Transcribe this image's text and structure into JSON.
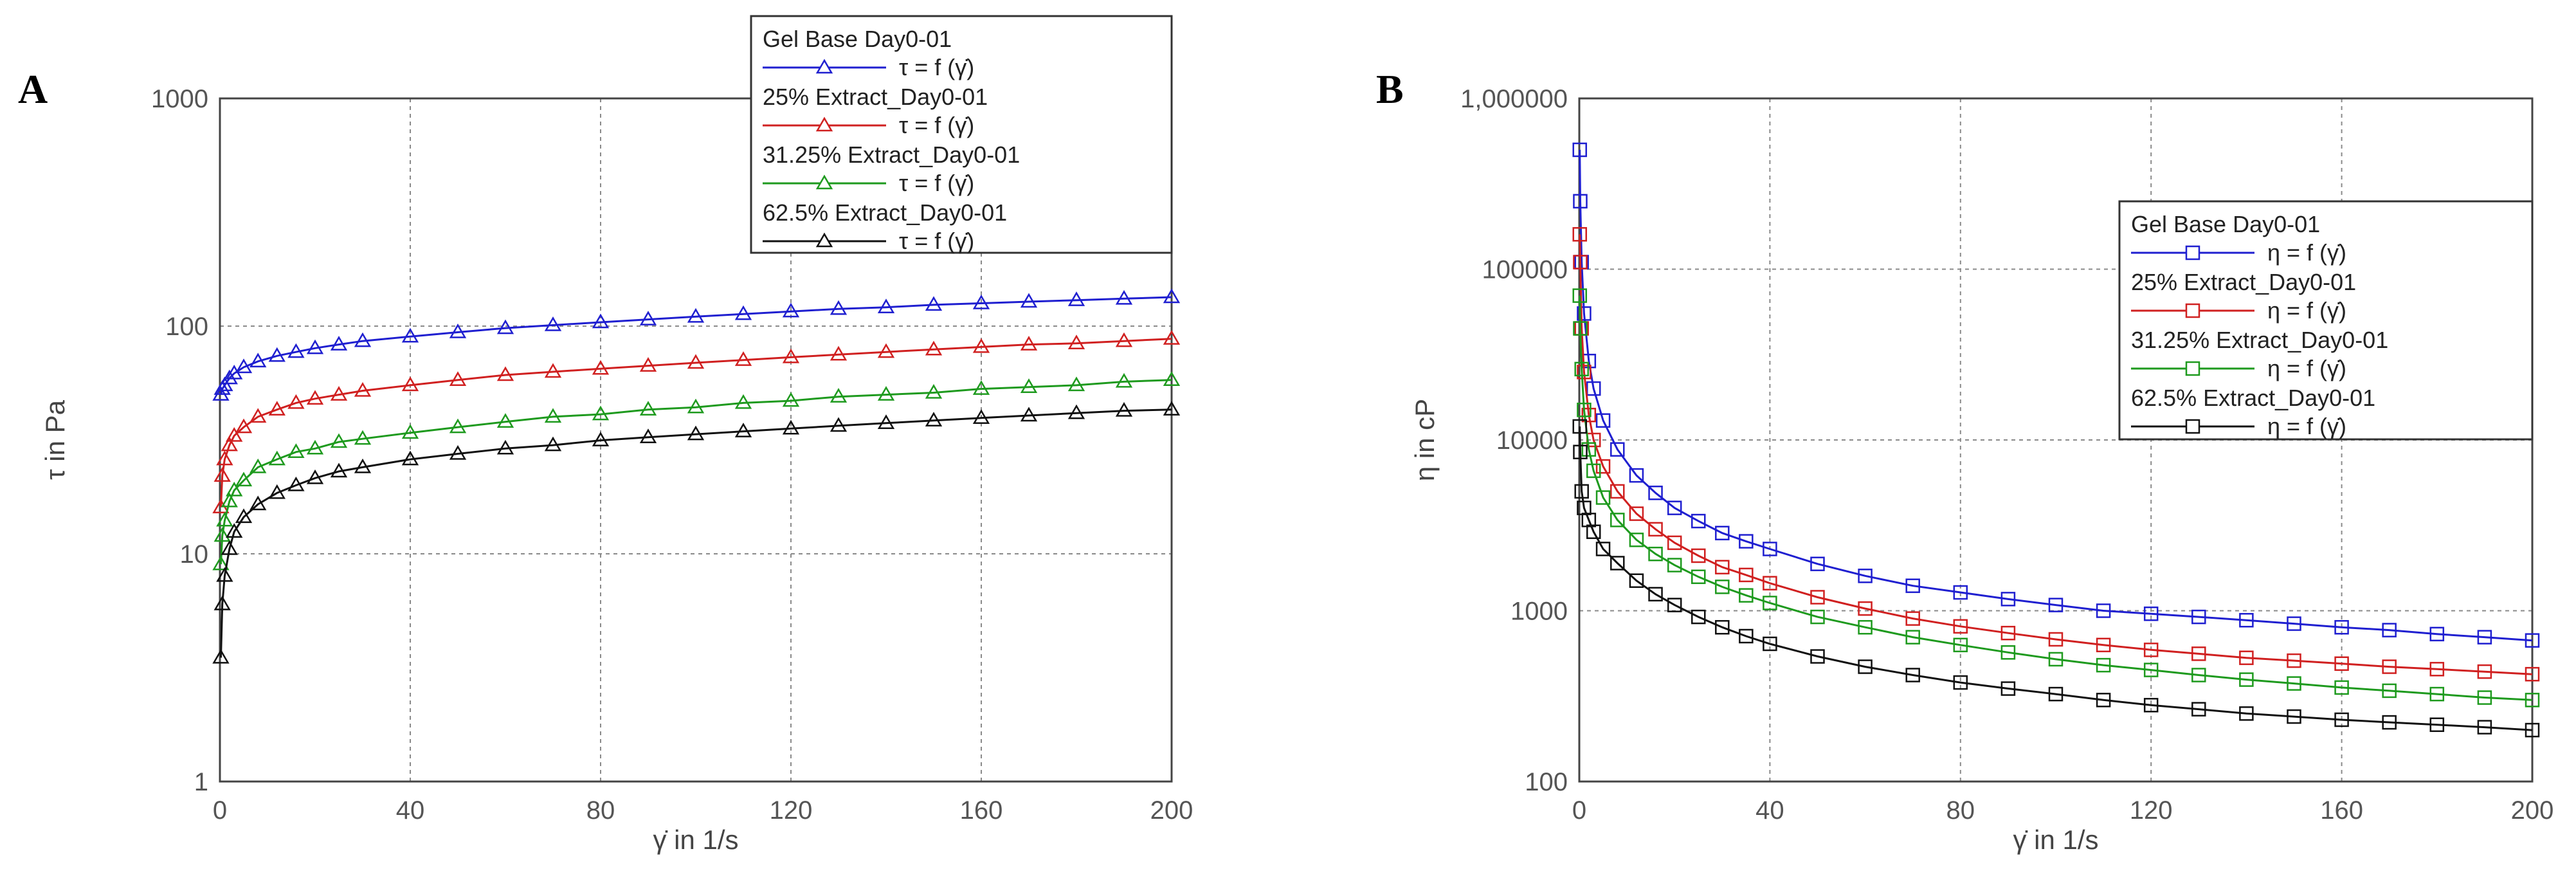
{
  "figure_labels": {
    "a": "A",
    "b": "B"
  },
  "chart_data": [
    {
      "type": "line",
      "panel": "A",
      "title": "",
      "xlabel": "γ̇ in 1/s",
      "ylabel": "τ in Pa",
      "yscale": "log",
      "xlim": [
        0,
        200
      ],
      "ylim": [
        1,
        1000
      ],
      "xticks": [
        "0",
        "40",
        "80",
        "120",
        "160",
        "200"
      ],
      "yticks": [
        "1",
        "10",
        "100",
        "1000"
      ],
      "marker": "triangle",
      "grid": true,
      "legend_position": "top-right",
      "series": [
        {
          "name": "Gel Base Day0-01",
          "legend_label": "τ = f (γ̇)",
          "color": "#1f1fd0",
          "x": [
            0.2,
            0.5,
            1,
            2,
            3,
            5,
            8,
            12,
            16,
            20,
            25,
            30,
            40,
            50,
            60,
            70,
            80,
            90,
            100,
            110,
            120,
            130,
            140,
            150,
            160,
            170,
            180,
            190,
            200
          ],
          "y": [
            50,
            53,
            55,
            59,
            62,
            66,
            70,
            74,
            77,
            80,
            83,
            86,
            90,
            94,
            98,
            101,
            104,
            107,
            110,
            113,
            116,
            119,
            121,
            124,
            126,
            128,
            130,
            132,
            134
          ]
        },
        {
          "name": "25% Extract_Day0-01",
          "legend_label": "τ = f (γ̇)",
          "color": "#d02020",
          "x": [
            0.2,
            0.5,
            1,
            2,
            3,
            5,
            8,
            12,
            16,
            20,
            25,
            30,
            40,
            50,
            60,
            70,
            80,
            90,
            100,
            110,
            120,
            130,
            140,
            150,
            160,
            170,
            180,
            190,
            200
          ],
          "y": [
            16,
            22,
            26,
            30,
            33,
            36,
            40,
            43,
            46,
            48,
            50,
            52,
            55,
            58,
            61,
            63,
            65,
            67,
            69,
            71,
            73,
            75,
            77,
            79,
            81,
            83,
            84,
            86,
            88
          ]
        },
        {
          "name": "31.25% Extract_Day0-01",
          "legend_label": "τ = f (γ̇)",
          "color": "#1e9a1e",
          "x": [
            0.2,
            0.5,
            1,
            2,
            3,
            5,
            8,
            12,
            16,
            20,
            25,
            30,
            40,
            50,
            60,
            70,
            80,
            90,
            100,
            110,
            120,
            130,
            140,
            150,
            160,
            170,
            180,
            190,
            200
          ],
          "y": [
            9,
            12,
            14,
            17,
            19,
            21,
            24,
            26,
            28,
            29,
            31,
            32,
            34,
            36,
            38,
            40,
            41,
            43,
            44,
            46,
            47,
            49,
            50,
            51,
            53,
            54,
            55,
            57,
            58
          ]
        },
        {
          "name": "62.5% Extract_Day0-01",
          "legend_label": "τ = f (γ̇)",
          "color": "#111111",
          "x": [
            0.2,
            0.5,
            1,
            2,
            3,
            5,
            8,
            12,
            16,
            20,
            25,
            30,
            40,
            50,
            60,
            70,
            80,
            90,
            100,
            110,
            120,
            130,
            140,
            150,
            160,
            170,
            180,
            190,
            200
          ],
          "y": [
            3.5,
            6,
            8,
            10.5,
            12.5,
            14.5,
            16.5,
            18.5,
            20,
            21.5,
            23,
            24,
            26,
            27.5,
            29,
            30,
            31.5,
            32.5,
            33.5,
            34.5,
            35.5,
            36.5,
            37.5,
            38.5,
            39.5,
            40.5,
            41.5,
            42.5,
            43
          ]
        }
      ]
    },
    {
      "type": "line",
      "panel": "B",
      "title": "",
      "xlabel": "γ̇ in 1/s",
      "ylabel": "η in cP",
      "yscale": "log",
      "xlim": [
        0,
        200
      ],
      "ylim": [
        100,
        1000000
      ],
      "xticks": [
        "0",
        "40",
        "80",
        "120",
        "160",
        "200"
      ],
      "yticks": [
        "100",
        "1000",
        "10000",
        "100000",
        "1,000000"
      ],
      "marker": "square",
      "grid": true,
      "legend_position": "center-right",
      "series": [
        {
          "name": "Gel Base Day0-01",
          "legend_label": "η = f (γ̇)",
          "color": "#1f1fd0",
          "x": [
            0.1,
            0.2,
            0.5,
            1,
            2,
            3,
            5,
            8,
            12,
            16,
            20,
            25,
            30,
            35,
            40,
            50,
            60,
            70,
            80,
            90,
            100,
            110,
            120,
            130,
            140,
            150,
            160,
            170,
            180,
            190,
            200
          ],
          "y": [
            500000,
            250000,
            110000,
            55000,
            29000,
            20000,
            13000,
            8800,
            6200,
            4900,
            4000,
            3350,
            2850,
            2550,
            2300,
            1880,
            1600,
            1400,
            1280,
            1170,
            1080,
            1000,
            960,
            920,
            880,
            840,
            800,
            770,
            730,
            700,
            670
          ]
        },
        {
          "name": "25% Extract_Day0-01",
          "legend_label": "η = f (γ̇)",
          "color": "#d02020",
          "x": [
            0.1,
            0.2,
            0.5,
            1,
            2,
            3,
            5,
            8,
            12,
            16,
            20,
            25,
            30,
            35,
            40,
            50,
            60,
            70,
            80,
            90,
            100,
            110,
            120,
            130,
            140,
            150,
            160,
            170,
            180,
            190,
            200
          ],
          "y": [
            160000,
            110000,
            45000,
            25000,
            14000,
            10000,
            7000,
            5000,
            3700,
            3000,
            2500,
            2100,
            1800,
            1620,
            1450,
            1200,
            1030,
            900,
            810,
            740,
            680,
            630,
            590,
            560,
            530,
            510,
            490,
            470,
            455,
            440,
            425
          ]
        },
        {
          "name": "31.25% Extract_Day0-01",
          "legend_label": "η = f (γ̇)",
          "color": "#1e9a1e",
          "x": [
            0.1,
            0.2,
            0.5,
            1,
            2,
            3,
            5,
            8,
            12,
            16,
            20,
            25,
            30,
            35,
            40,
            50,
            60,
            70,
            80,
            90,
            100,
            110,
            120,
            130,
            140,
            150,
            160,
            170,
            180,
            190,
            200
          ],
          "y": [
            70000,
            45000,
            26000,
            15000,
            8800,
            6600,
            4600,
            3400,
            2600,
            2150,
            1850,
            1580,
            1380,
            1230,
            1110,
            920,
            800,
            700,
            630,
            570,
            520,
            480,
            450,
            420,
            395,
            375,
            355,
            340,
            325,
            310,
            300
          ]
        },
        {
          "name": "62.5% Extract_Day0-01",
          "legend_label": "η = f (γ̇)",
          "color": "#111111",
          "x": [
            0.1,
            0.2,
            0.5,
            1,
            2,
            3,
            5,
            8,
            12,
            16,
            20,
            25,
            30,
            35,
            40,
            50,
            60,
            70,
            80,
            90,
            100,
            110,
            120,
            130,
            140,
            150,
            160,
            170,
            180,
            190,
            200
          ],
          "y": [
            12000,
            8500,
            5000,
            4000,
            3400,
            2900,
            2300,
            1900,
            1500,
            1250,
            1080,
            920,
            800,
            710,
            640,
            540,
            470,
            420,
            380,
            350,
            325,
            300,
            280,
            265,
            250,
            240,
            230,
            222,
            215,
            208,
            200
          ]
        }
      ]
    }
  ]
}
